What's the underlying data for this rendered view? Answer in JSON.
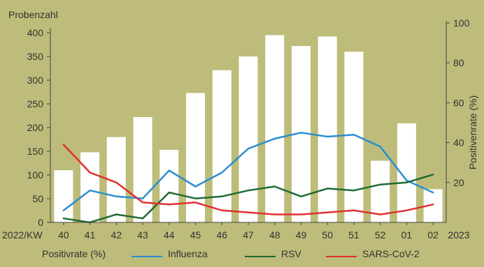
{
  "chart_data": {
    "type": "bar+line",
    "bar_axis_label": "Probenzahl",
    "line_axis_label": "Positivenrate (%)",
    "x_prefix_label": "2022/KW",
    "x_suffix_label": "2023",
    "categories": [
      "40",
      "41",
      "42",
      "43",
      "44",
      "45",
      "46",
      "47",
      "48",
      "49",
      "50",
      "51",
      "52",
      "01",
      "02"
    ],
    "bars": {
      "axis": "left",
      "color": "#ffffff",
      "values": [
        110,
        148,
        180,
        222,
        153,
        273,
        321,
        350,
        395,
        372,
        392,
        360,
        130,
        209,
        70
      ]
    },
    "left_axis": {
      "ylim": [
        0,
        400
      ],
      "ticks": [
        "0",
        "50",
        "100",
        "150",
        "200",
        "250",
        "300",
        "350",
        "400"
      ]
    },
    "right_axis": {
      "ylim": [
        0,
        100
      ],
      "ticks": [
        "20",
        "40",
        "60",
        "80",
        "100"
      ]
    },
    "series": [
      {
        "name": "Influenza",
        "color": "#2a8fcf",
        "values": [
          6,
          16,
          13,
          12,
          26,
          18,
          25,
          37,
          42,
          45,
          43,
          44,
          38,
          21,
          15
        ]
      },
      {
        "name": "RSV",
        "color": "#1e6b34",
        "values": [
          2,
          0,
          4,
          2,
          15,
          12,
          13,
          16,
          18,
          13,
          17,
          16,
          19,
          20,
          24
        ]
      },
      {
        "name": "SARS-CoV-2",
        "color": "#e03030",
        "values": [
          39,
          25,
          20,
          10,
          9,
          10,
          6,
          5,
          4,
          4,
          5,
          6,
          4,
          6,
          9
        ]
      }
    ],
    "legend_title": "Positivrate (%)",
    "legend_position": "bottom",
    "grid": false
  }
}
